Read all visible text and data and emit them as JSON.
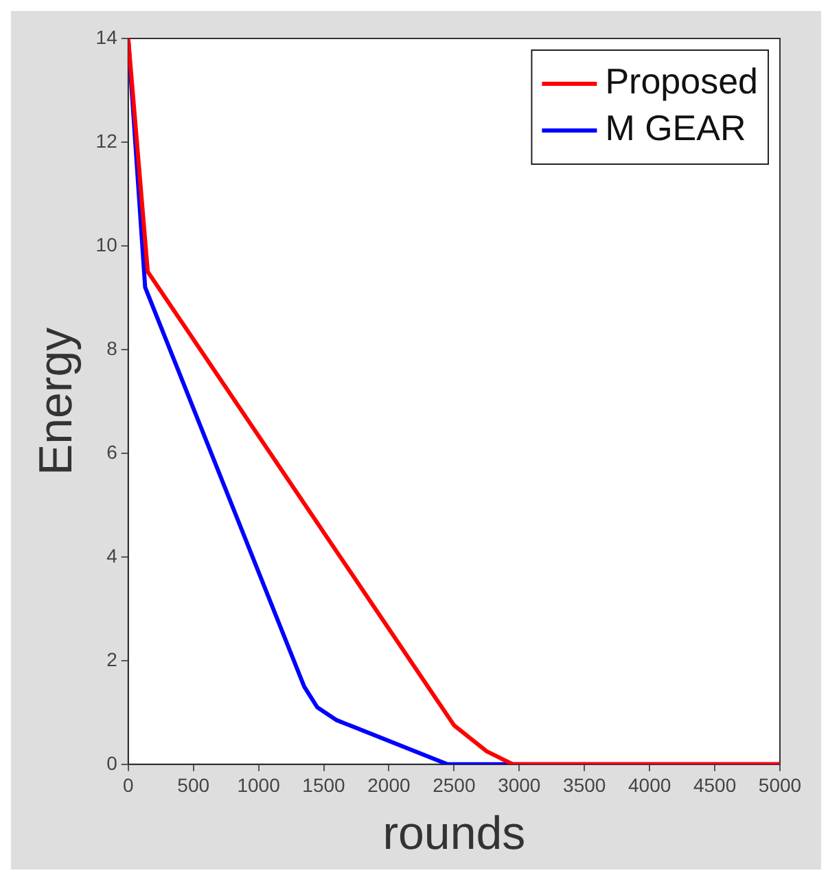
{
  "chart_data": {
    "type": "line",
    "xlabel": "rounds",
    "ylabel": "Energy",
    "xlim": [
      0,
      5000
    ],
    "xticks": [
      0,
      500,
      1000,
      1500,
      2000,
      2500,
      3000,
      3500,
      4000,
      4500,
      5000
    ],
    "ylim": [
      0,
      14
    ],
    "yticks": [
      0,
      2,
      4,
      6,
      8,
      10,
      12,
      14
    ],
    "grid": false,
    "legend": "top right",
    "marker": "none",
    "line_style": "solid",
    "series": [
      {
        "name": "Proposed",
        "color": "#ff0000",
        "x": [
          0,
          150,
          1600,
          2500,
          2750,
          2950,
          5000
        ],
        "values": [
          14,
          9.5,
          4.1,
          0.75,
          0.25,
          0,
          0
        ]
      },
      {
        "name": "M GEAR",
        "color": "#0000ff",
        "x": [
          0,
          130,
          1350,
          1450,
          1600,
          2450,
          5000
        ],
        "values": [
          14,
          9.2,
          1.5,
          1.1,
          0.85,
          0,
          0
        ]
      }
    ]
  }
}
